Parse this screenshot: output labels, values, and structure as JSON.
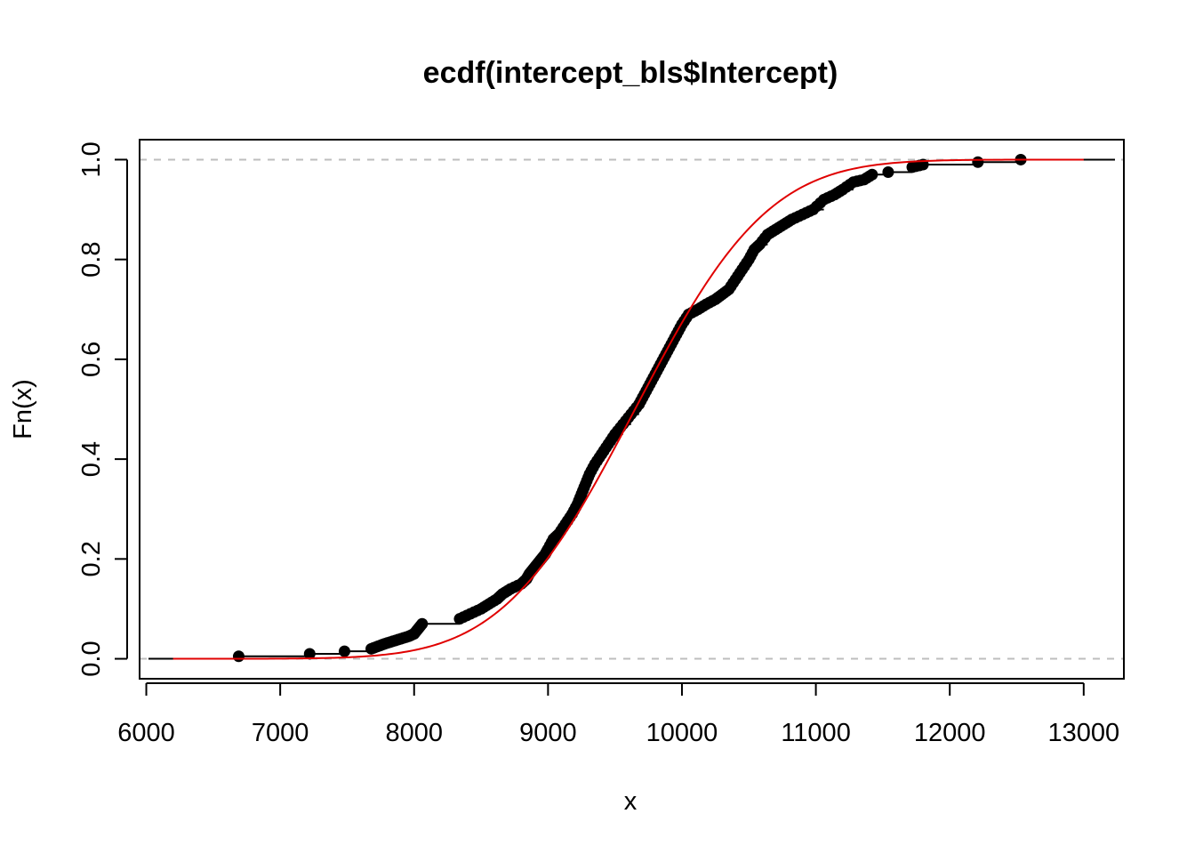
{
  "chart_data": {
    "type": "scatter",
    "title": "ecdf(intercept_bls$Intercept)",
    "xlabel": "x",
    "ylabel": "Fn(x)",
    "xlim": [
      5950,
      13300
    ],
    "ylim": [
      -0.04,
      1.04
    ],
    "x_ticks": [
      6000,
      7000,
      8000,
      9000,
      10000,
      11000,
      12000,
      13000
    ],
    "y_ticks": [
      0.0,
      0.2,
      0.4,
      0.6,
      0.8,
      1.0
    ],
    "x_tick_labels": [
      "6000",
      "7000",
      "8000",
      "9000",
      "10000",
      "11000",
      "12000",
      "13000"
    ],
    "y_tick_labels": [
      "0.0",
      "0.2",
      "0.4",
      "0.6",
      "0.8",
      "1.0"
    ],
    "reference_lines": [
      0,
      1
    ],
    "grid": false,
    "colors": {
      "ecdf": "#000000",
      "fitted_cdf": "#e00000",
      "reference": "#bebebe"
    },
    "series": [
      {
        "kind": "ecdf-steps",
        "x": [
          6690,
          7220,
          7480,
          7680,
          7730,
          7780,
          7840,
          7900,
          7960,
          8000,
          8030,
          8060,
          8340,
          8420,
          8500,
          8560,
          8620,
          8660,
          8720,
          8800,
          8840,
          8860,
          8890,
          8920,
          8950,
          8980,
          9000,
          9040,
          9080,
          9130,
          9180,
          9220,
          9250,
          9280,
          9310,
          9350,
          9400,
          9450,
          9500,
          9560,
          9620,
          9680,
          9720,
          9760,
          9800,
          9840,
          9880,
          9920,
          9960,
          10000,
          10050,
          10120,
          10180,
          10250,
          10300,
          10350,
          10400,
          10450,
          10500,
          10540,
          10580,
          10640,
          10700,
          10760,
          10820,
          10900,
          10980,
          11060,
          11140,
          11200,
          11280,
          11360,
          11420,
          11540,
          11720,
          11800,
          12210,
          12530
        ],
        "y": [
          0.005,
          0.01,
          0.015,
          0.02,
          0.025,
          0.03,
          0.035,
          0.04,
          0.045,
          0.05,
          0.06,
          0.07,
          0.08,
          0.09,
          0.1,
          0.11,
          0.12,
          0.13,
          0.14,
          0.15,
          0.16,
          0.17,
          0.18,
          0.19,
          0.2,
          0.21,
          0.22,
          0.24,
          0.25,
          0.27,
          0.29,
          0.31,
          0.33,
          0.35,
          0.37,
          0.39,
          0.41,
          0.43,
          0.45,
          0.47,
          0.49,
          0.51,
          0.53,
          0.55,
          0.57,
          0.59,
          0.61,
          0.63,
          0.65,
          0.67,
          0.69,
          0.7,
          0.71,
          0.72,
          0.73,
          0.74,
          0.76,
          0.78,
          0.8,
          0.82,
          0.83,
          0.85,
          0.86,
          0.87,
          0.88,
          0.89,
          0.9,
          0.92,
          0.93,
          0.94,
          0.955,
          0.96,
          0.97,
          0.975,
          0.985,
          0.99,
          0.995,
          1.0
        ]
      },
      {
        "kind": "fitted-normal-cdf",
        "mean": 9650,
        "sd": 780,
        "x_range": [
          6200,
          13000
        ]
      }
    ]
  }
}
